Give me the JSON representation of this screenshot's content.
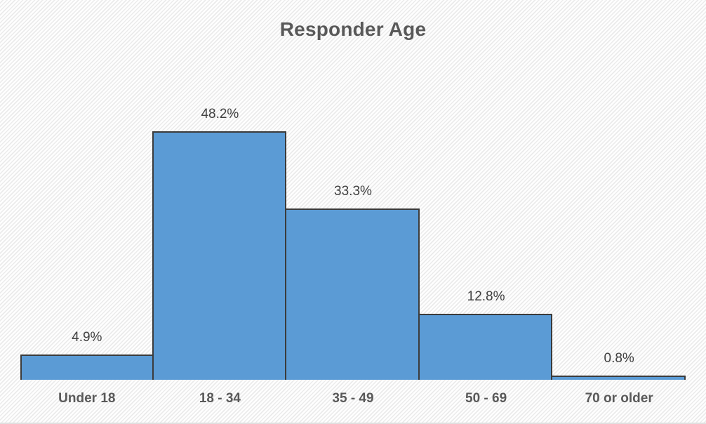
{
  "chart_data": {
    "type": "bar",
    "title": "Responder Age",
    "categories": [
      "Under 18",
      "18 - 34",
      "35 - 49",
      "50 - 69",
      "70 or older"
    ],
    "values": [
      4.9,
      48.2,
      33.3,
      12.8,
      0.8
    ],
    "value_labels": [
      "4.9%",
      "48.2%",
      "33.3%",
      "12.8%",
      "0.8%"
    ],
    "xlabel": "",
    "ylabel": "",
    "ylim": [
      0,
      55
    ],
    "grid": false,
    "legend": "none",
    "bar_gap": "none",
    "colors": {
      "bar_fill": "#5B9BD5",
      "bar_border": "#3B3B3B",
      "title_text": "#595959",
      "value_label_text": "#404040",
      "category_label_text": "#595959",
      "background_hatch_light": "#FEFEFE",
      "background_hatch_dark": "#EBEBEB"
    }
  }
}
